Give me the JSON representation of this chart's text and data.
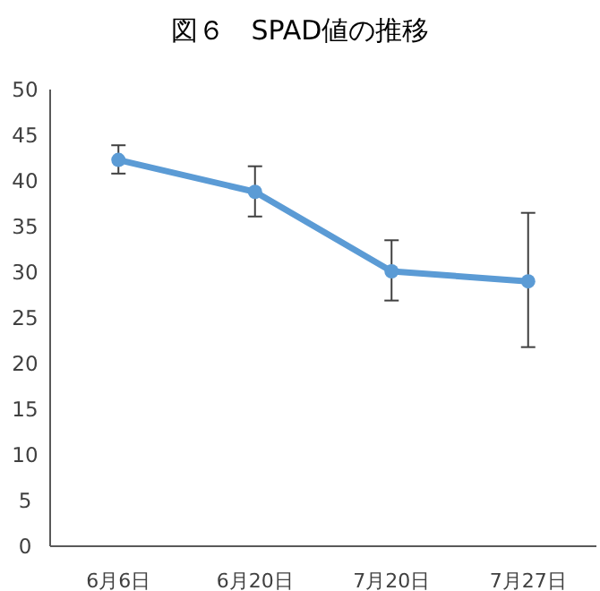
{
  "chart_data": {
    "type": "line",
    "title": "図６　SPAD値の推移",
    "categories": [
      "6月6日",
      "6月20日",
      "7月20日",
      "7月27日"
    ],
    "series": [
      {
        "color": "#5b9bd5",
        "values": [
          42.3,
          38.8,
          30.1,
          29.0
        ],
        "errors": [
          [
            40.8,
            43.9
          ],
          [
            36.1,
            41.6
          ],
          [
            26.9,
            33.5
          ],
          [
            21.8,
            36.5
          ]
        ]
      }
    ],
    "ylim": [
      0,
      50
    ],
    "yticks": [
      0,
      5,
      10,
      15,
      20,
      25,
      30,
      35,
      40,
      45,
      50
    ],
    "marker": "circle",
    "line_style": "solid",
    "grid": false
  }
}
